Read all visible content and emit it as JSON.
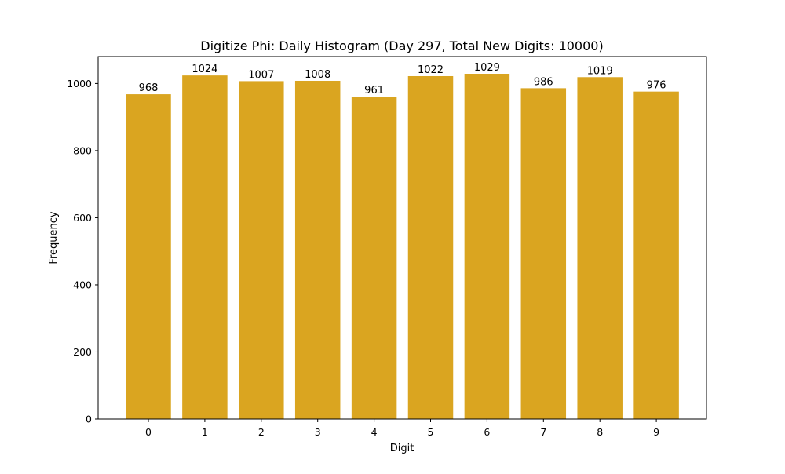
{
  "chart_data": {
    "type": "bar",
    "title": "Digitize Phi: Daily Histogram (Day 297, Total New Digits: 10000)",
    "xlabel": "Digit",
    "ylabel": "Frequency",
    "categories": [
      "0",
      "1",
      "2",
      "3",
      "4",
      "5",
      "6",
      "7",
      "8",
      "9"
    ],
    "values": [
      968,
      1024,
      1007,
      1008,
      961,
      1022,
      1029,
      986,
      1019,
      976
    ],
    "data_labels": [
      "968",
      "1024",
      "1007",
      "1008",
      "961",
      "1022",
      "1029",
      "986",
      "1019",
      "976"
    ],
    "yticks": [
      0,
      200,
      400,
      600,
      800,
      1000
    ],
    "ytick_labels": [
      "0",
      "200",
      "400",
      "600",
      "800",
      "1000"
    ],
    "ylim": [
      0,
      1080.45
    ],
    "grid": false,
    "legend": "none",
    "bar_color": "#DAA520"
  }
}
